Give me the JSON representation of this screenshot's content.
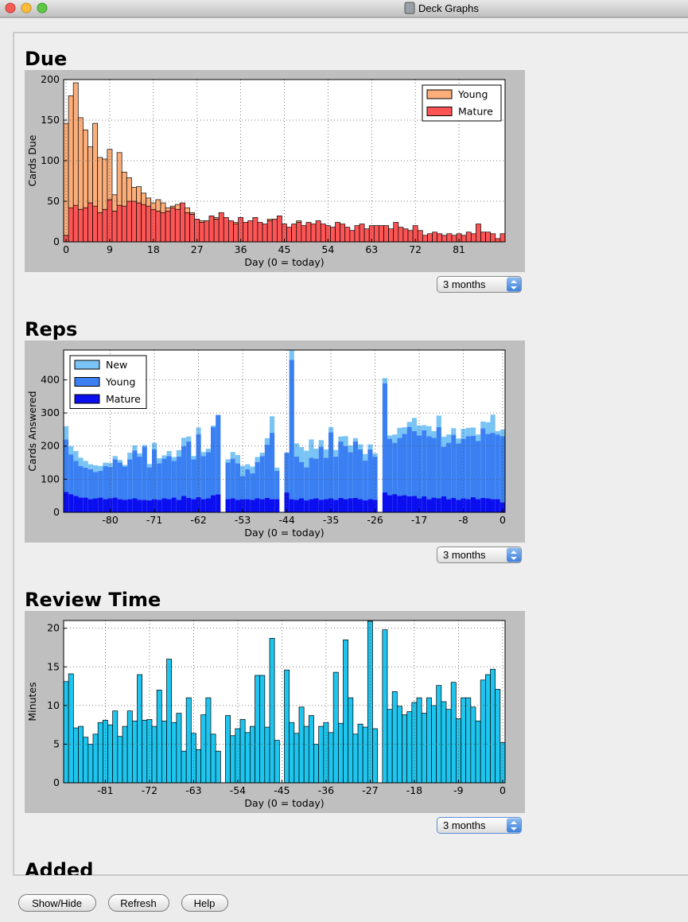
{
  "window": {
    "title": "Deck Graphs"
  },
  "sections": [
    {
      "heading": "Due",
      "dropdown": "3 months"
    },
    {
      "heading": "Reps",
      "dropdown": "3 months"
    },
    {
      "heading": "Review Time",
      "dropdown": "3 months"
    },
    {
      "heading": "Added"
    }
  ],
  "chart_data": [
    {
      "type": "bar",
      "stacked": true,
      "grid": true,
      "legend": "upper right",
      "edgecolor": "#000000",
      "xlabel": "Day (0 = today)",
      "ylabel": "Cards Due",
      "x": [
        0,
        1,
        2,
        3,
        4,
        5,
        6,
        7,
        8,
        9,
        10,
        11,
        12,
        13,
        14,
        15,
        16,
        17,
        18,
        19,
        20,
        21,
        22,
        23,
        24,
        25,
        26,
        27,
        28,
        29,
        30,
        31,
        32,
        33,
        34,
        35,
        36,
        37,
        38,
        39,
        40,
        41,
        42,
        43,
        44,
        45,
        46,
        47,
        48,
        49,
        50,
        51,
        52,
        53,
        54,
        55,
        56,
        57,
        58,
        59,
        60,
        61,
        62,
        63,
        64,
        65,
        66,
        67,
        68,
        69,
        70,
        71,
        72,
        73,
        74,
        75,
        76,
        77,
        78,
        79,
        80,
        81,
        82,
        83,
        84,
        85,
        86,
        87,
        88,
        89,
        90
      ],
      "series": [
        {
          "name": "Young",
          "color": "#fcae7a",
          "values": [
            138,
            138,
            151,
            113,
            96,
            69,
            102,
            68,
            62,
            62,
            20,
            65,
            42,
            29,
            17,
            20,
            14,
            10,
            8,
            14,
            12,
            4,
            2,
            6,
            0,
            6,
            2,
            0,
            2,
            0,
            0,
            2,
            0,
            0,
            0,
            2,
            0,
            0,
            0,
            0,
            0,
            0,
            2,
            0,
            0,
            0,
            0,
            0,
            2,
            0,
            0,
            0,
            0,
            0,
            0,
            0,
            0,
            0,
            0,
            0,
            0,
            0,
            0,
            0,
            0,
            0,
            0,
            0,
            0,
            0,
            0,
            0,
            0,
            0,
            0,
            0,
            0,
            0,
            0,
            0,
            0,
            0,
            0,
            0,
            0,
            0,
            0,
            0,
            0,
            0,
            0
          ]
        },
        {
          "name": "Mature",
          "color": "#fd5555",
          "values": [
            8,
            42,
            45,
            40,
            42,
            48,
            44,
            36,
            40,
            52,
            38,
            45,
            44,
            50,
            50,
            48,
            46,
            44,
            40,
            38,
            36,
            38,
            42,
            40,
            48,
            36,
            34,
            28,
            24,
            26,
            32,
            28,
            36,
            30,
            26,
            22,
            30,
            24,
            26,
            30,
            24,
            22,
            26,
            28,
            32,
            22,
            18,
            22,
            24,
            20,
            24,
            22,
            26,
            22,
            20,
            18,
            24,
            22,
            18,
            14,
            20,
            22,
            16,
            20,
            20,
            20,
            20,
            16,
            24,
            18,
            16,
            14,
            20,
            14,
            8,
            10,
            12,
            10,
            8,
            10,
            8,
            10,
            8,
            12,
            10,
            22,
            12,
            12,
            10,
            4,
            10
          ]
        }
      ],
      "xlim": [
        -0.5,
        90.5
      ],
      "xticks": [
        0,
        9,
        18,
        27,
        36,
        45,
        54,
        63,
        72,
        81
      ],
      "ylim": [
        0,
        200
      ],
      "yticks": [
        0,
        50,
        100,
        150,
        200
      ]
    },
    {
      "type": "bar",
      "stacked": true,
      "grid": true,
      "legend": "upper left",
      "xlabel": "Day (0 = today)",
      "ylabel": "Cards Answered",
      "x": [
        -89,
        -88,
        -87,
        -86,
        -85,
        -84,
        -83,
        -82,
        -81,
        -80,
        -79,
        -78,
        -77,
        -76,
        -75,
        -74,
        -73,
        -72,
        -71,
        -70,
        -69,
        -68,
        -67,
        -66,
        -65,
        -64,
        -63,
        -62,
        -61,
        -60,
        -59,
        -58,
        -57,
        -56,
        -55,
        -54,
        -53,
        -52,
        -51,
        -50,
        -49,
        -48,
        -47,
        -46,
        -45,
        -44,
        -43,
        -42,
        -41,
        -40,
        -39,
        -38,
        -37,
        -36,
        -35,
        -34,
        -33,
        -32,
        -31,
        -30,
        -29,
        -28,
        -27,
        -26,
        -25,
        -24,
        -23,
        -22,
        -21,
        -20,
        -19,
        -18,
        -17,
        -16,
        -15,
        -14,
        -13,
        -12,
        -11,
        -10,
        -9,
        -8,
        -7,
        -6,
        -5,
        -4,
        -3,
        -2,
        -1,
        0
      ],
      "series": [
        {
          "name": "New",
          "color": "#7ac3f5",
          "values": [
            40,
            25,
            30,
            25,
            20,
            15,
            20,
            15,
            10,
            12,
            10,
            8,
            5,
            20,
            15,
            10,
            5,
            10,
            20,
            15,
            10,
            15,
            12,
            20,
            25,
            15,
            10,
            20,
            12,
            10,
            5,
            0,
            0,
            10,
            20,
            25,
            30,
            15,
            20,
            15,
            10,
            20,
            50,
            10,
            0,
            0,
            30,
            40,
            45,
            50,
            55,
            30,
            20,
            25,
            15,
            20,
            15,
            30,
            20,
            10,
            15,
            20,
            15,
            10,
            0,
            15,
            10,
            25,
            30,
            20,
            15,
            40,
            30,
            15,
            30,
            20,
            35,
            30,
            25,
            20,
            15,
            30,
            25,
            25,
            20,
            20,
            35,
            55,
            10,
            20
          ]
        },
        {
          "name": "Young",
          "color": "#3a80f2",
          "values": [
            158,
            120,
            105,
            95,
            90,
            90,
            80,
            80,
            100,
            95,
            115,
            110,
            100,
            120,
            145,
            130,
            160,
            100,
            150,
            110,
            120,
            130,
            110,
            130,
            150,
            170,
            120,
            190,
            130,
            140,
            205,
            240,
            0,
            110,
            120,
            110,
            70,
            90,
            80,
            110,
            130,
            160,
            200,
            85,
            0,
            120,
            420,
            130,
            110,
            100,
            125,
            120,
            160,
            125,
            200,
            130,
            170,
            160,
            140,
            170,
            150,
            120,
            150,
            130,
            0,
            330,
            170,
            155,
            175,
            185,
            210,
            195,
            190,
            200,
            190,
            180,
            215,
            150,
            170,
            190,
            170,
            180,
            190,
            185,
            175,
            210,
            195,
            200,
            195,
            200
          ]
        },
        {
          "name": "Mature",
          "color": "#0b0ff0",
          "values": [
            62,
            55,
            50,
            45,
            45,
            40,
            42,
            45,
            40,
            42,
            45,
            40,
            38,
            40,
            42,
            38,
            38,
            36,
            40,
            38,
            42,
            40,
            45,
            38,
            50,
            44,
            40,
            46,
            40,
            42,
            52,
            54,
            0,
            40,
            42,
            38,
            40,
            40,
            38,
            42,
            40,
            44,
            40,
            40,
            0,
            60,
            40,
            38,
            42,
            36,
            40,
            42,
            38,
            40,
            42,
            38,
            44,
            40,
            42,
            44,
            40,
            36,
            40,
            38,
            0,
            60,
            52,
            55,
            50,
            52,
            48,
            50,
            42,
            48,
            40,
            45,
            42,
            48,
            40,
            44,
            38,
            42,
            40,
            46,
            40,
            44,
            42,
            40,
            40,
            30
          ]
        }
      ],
      "xlim": [
        -89.5,
        0.5
      ],
      "xticks": [
        -80,
        -71,
        -62,
        -53,
        -44,
        -35,
        -26,
        -17,
        -8,
        0
      ],
      "ylim": [
        0,
        490
      ],
      "yticks": [
        0,
        100,
        200,
        300,
        400
      ]
    },
    {
      "type": "bar",
      "grid": true,
      "edgecolor": "#000000",
      "color": "#1ec5ee",
      "xlabel": "Day (0 = today)",
      "ylabel": "Minutes",
      "x": [
        -89,
        -88,
        -87,
        -86,
        -85,
        -84,
        -83,
        -82,
        -81,
        -80,
        -79,
        -78,
        -77,
        -76,
        -75,
        -74,
        -73,
        -72,
        -71,
        -70,
        -69,
        -68,
        -67,
        -66,
        -65,
        -64,
        -63,
        -62,
        -61,
        -60,
        -59,
        -58,
        -57,
        -56,
        -55,
        -54,
        -53,
        -52,
        -51,
        -50,
        -49,
        -48,
        -47,
        -46,
        -45,
        -44,
        -43,
        -42,
        -41,
        -40,
        -39,
        -38,
        -37,
        -36,
        -35,
        -34,
        -33,
        -32,
        -31,
        -30,
        -29,
        -28,
        -27,
        -26,
        -25,
        -24,
        -23,
        -22,
        -21,
        -20,
        -19,
        -18,
        -17,
        -16,
        -15,
        -14,
        -13,
        -12,
        -11,
        -10,
        -9,
        -8,
        -7,
        -6,
        -5,
        -4,
        -3,
        -2,
        -1,
        0
      ],
      "values": [
        13.1,
        14.1,
        7.1,
        7.3,
        5.9,
        5.0,
        6.3,
        7.8,
        8.1,
        7.5,
        9.3,
        6.0,
        7.3,
        9.3,
        8.0,
        14.0,
        8.1,
        8.2,
        7.3,
        12.0,
        8.0,
        16.0,
        7.8,
        9.0,
        4.1,
        11.0,
        6.4,
        4.3,
        8.8,
        11.0,
        6.3,
        4.1,
        0,
        8.7,
        6.1,
        7.0,
        8.2,
        6.5,
        7.3,
        13.9,
        13.9,
        7.2,
        18.7,
        5.5,
        0,
        14.6,
        7.8,
        6.4,
        9.8,
        7.3,
        8.7,
        5.0,
        7.3,
        7.8,
        6.5,
        14.3,
        7.7,
        18.5,
        11.0,
        6.3,
        7.6,
        7.2,
        20.9,
        7.0,
        0,
        19.8,
        9.5,
        11.8,
        9.9,
        8.8,
        9.2,
        10.4,
        11.0,
        9.0,
        11.0,
        10.0,
        12.6,
        10.5,
        9.5,
        13.0,
        8.3,
        11.0,
        11.0,
        9.8,
        8.0,
        13.3,
        14.0,
        14.7,
        12.1,
        5.2
      ],
      "xlim": [
        -89.5,
        0.5
      ],
      "xticks": [
        -81,
        -72,
        -63,
        -54,
        -45,
        -36,
        -27,
        -18,
        -9,
        0
      ],
      "ylim": [
        0,
        21
      ],
      "yticks": [
        0,
        5,
        10,
        15,
        20
      ]
    }
  ],
  "buttons": [
    "Show/Hide",
    "Refresh",
    "Help"
  ]
}
